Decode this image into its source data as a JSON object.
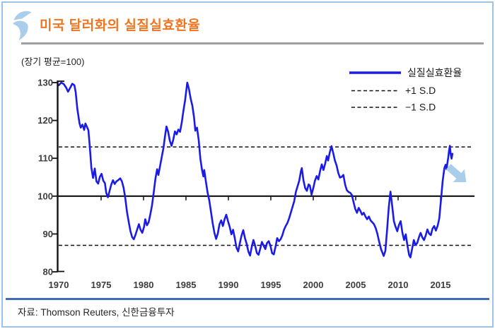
{
  "header": {
    "title": "미국 달러화의 실질실효환율",
    "logo": "shinhan-bird"
  },
  "footer": {
    "source": "자료: Thomson Reuters, 신한금융투자"
  },
  "colors": {
    "series_line": "#1b1be8",
    "title_orange": "#ee7623",
    "light_blue_accent": "#a9cdea",
    "page_border": "#9cc2e5",
    "footer_rule_blue": "#3e6fb5",
    "axis_black": "#111111"
  },
  "chart_data": {
    "type": "line",
    "title": "미국 달러화의 실질실효환율",
    "unit_note": "(장기 평균=100)",
    "xlabel": "",
    "ylabel": "",
    "xlim": [
      1970,
      2019
    ],
    "ylim": [
      80,
      130
    ],
    "x_ticks": [
      1970,
      1975,
      1980,
      1985,
      1990,
      1995,
      2000,
      2005,
      2010,
      2015
    ],
    "y_ticks": [
      80,
      90,
      100,
      110,
      120,
      130
    ],
    "grid": false,
    "legend_position": "top-right",
    "legend": [
      {
        "label": "실질실효환율",
        "style": "solid",
        "color": "#1b1be8"
      },
      {
        "label": "+1 S.D",
        "style": "dashed",
        "color": "#111111"
      },
      {
        "label": "−1 S.D",
        "style": "dashed",
        "color": "#111111"
      }
    ],
    "reference_lines": {
      "mean": 100,
      "sd_plus": 113,
      "sd_minus": 87
    },
    "annotation": {
      "type": "block-arrow",
      "direction": "down-right",
      "position_year": 2017,
      "position_value": 105,
      "color": "#a9cdea"
    },
    "series": [
      {
        "name": "실질실효환율",
        "points": [
          [
            1970.0,
            129.3
          ],
          [
            1970.3,
            130
          ],
          [
            1970.6,
            129.6
          ],
          [
            1970.9,
            128.6
          ],
          [
            1971.1,
            127.6
          ],
          [
            1971.35,
            128.6
          ],
          [
            1971.6,
            129.7
          ],
          [
            1971.85,
            129.3
          ],
          [
            1972.0,
            127.5
          ],
          [
            1972.2,
            123
          ],
          [
            1972.45,
            119.3
          ],
          [
            1972.6,
            118.1
          ],
          [
            1972.8,
            118.9
          ],
          [
            1973.0,
            117.5
          ],
          [
            1973.15,
            119.2
          ],
          [
            1973.35,
            118.2
          ],
          [
            1973.5,
            117.4
          ],
          [
            1973.65,
            113.5
          ],
          [
            1973.85,
            107.5
          ],
          [
            1974.05,
            104.8
          ],
          [
            1974.25,
            107.3
          ],
          [
            1974.45,
            103.9
          ],
          [
            1974.65,
            103.3
          ],
          [
            1974.85,
            105.1
          ],
          [
            1975.05,
            105.9
          ],
          [
            1975.25,
            104.1
          ],
          [
            1975.45,
            103.4
          ],
          [
            1975.6,
            100.9
          ],
          [
            1975.8,
            99.7
          ],
          [
            1976.0,
            101.4
          ],
          [
            1976.2,
            103.1
          ],
          [
            1976.4,
            104.2
          ],
          [
            1976.6,
            103.2
          ],
          [
            1976.8,
            103.9
          ],
          [
            1977.0,
            104.2
          ],
          [
            1977.25,
            104.7
          ],
          [
            1977.45,
            103.9
          ],
          [
            1977.65,
            102.2
          ],
          [
            1977.85,
            99.4
          ],
          [
            1978.05,
            95.8
          ],
          [
            1978.25,
            93.2
          ],
          [
            1978.45,
            90.8
          ],
          [
            1978.65,
            89.2
          ],
          [
            1978.85,
            88.6
          ],
          [
            1979.05,
            89.8
          ],
          [
            1979.25,
            91.2
          ],
          [
            1979.45,
            92.6
          ],
          [
            1979.65,
            91.1
          ],
          [
            1979.85,
            90.3
          ],
          [
            1980.05,
            91.8
          ],
          [
            1980.2,
            93.9
          ],
          [
            1980.4,
            92.3
          ],
          [
            1980.6,
            93.1
          ],
          [
            1980.8,
            95.2
          ],
          [
            1981.0,
            97.6
          ],
          [
            1981.2,
            101
          ],
          [
            1981.4,
            104.6
          ],
          [
            1981.6,
            107.1
          ],
          [
            1981.75,
            105.6
          ],
          [
            1981.95,
            108
          ],
          [
            1982.15,
            110.4
          ],
          [
            1982.35,
            112.8
          ],
          [
            1982.55,
            116.2
          ],
          [
            1982.7,
            118.4
          ],
          [
            1982.9,
            117
          ],
          [
            1983.1,
            114.6
          ],
          [
            1983.3,
            113.3
          ],
          [
            1983.5,
            114.9
          ],
          [
            1983.7,
            117.1
          ],
          [
            1983.9,
            116.3
          ],
          [
            1984.1,
            117.6
          ],
          [
            1984.3,
            117
          ],
          [
            1984.5,
            119.4
          ],
          [
            1984.7,
            122.6
          ],
          [
            1984.9,
            125.4
          ],
          [
            1985.15,
            130
          ],
          [
            1985.35,
            128.3
          ],
          [
            1985.55,
            125.8
          ],
          [
            1985.75,
            123.9
          ],
          [
            1985.95,
            120.8
          ],
          [
            1986.1,
            117.3
          ],
          [
            1986.3,
            118.1
          ],
          [
            1986.5,
            114.8
          ],
          [
            1986.7,
            109.8
          ],
          [
            1986.9,
            106.8
          ],
          [
            1987.05,
            105.2
          ],
          [
            1987.15,
            106.9
          ],
          [
            1987.35,
            103.8
          ],
          [
            1987.55,
            100.9
          ],
          [
            1987.75,
            98.8
          ],
          [
            1987.95,
            95.8
          ],
          [
            1988.15,
            92.8
          ],
          [
            1988.35,
            90.3
          ],
          [
            1988.55,
            88.7
          ],
          [
            1988.75,
            90.1
          ],
          [
            1988.95,
            92.6
          ],
          [
            1989.15,
            93.6
          ],
          [
            1989.35,
            92.1
          ],
          [
            1989.55,
            93.9
          ],
          [
            1989.75,
            95.1
          ],
          [
            1989.95,
            93.4
          ],
          [
            1990.15,
            91.9
          ],
          [
            1990.35,
            89.9
          ],
          [
            1990.55,
            91.1
          ],
          [
            1990.75,
            88.9
          ],
          [
            1990.95,
            86.4
          ],
          [
            1991.15,
            85.4
          ],
          [
            1991.35,
            87.6
          ],
          [
            1991.55,
            89.6
          ],
          [
            1991.75,
            91
          ],
          [
            1991.95,
            88.9
          ],
          [
            1992.15,
            87.4
          ],
          [
            1992.35,
            85.4
          ],
          [
            1992.55,
            84.3
          ],
          [
            1992.75,
            86.6
          ],
          [
            1992.95,
            88.4
          ],
          [
            1993.15,
            86.9
          ],
          [
            1993.35,
            85
          ],
          [
            1993.55,
            84.5
          ],
          [
            1993.75,
            86.1
          ],
          [
            1993.95,
            87.9
          ],
          [
            1994.15,
            86.9
          ],
          [
            1994.35,
            86
          ],
          [
            1994.55,
            87.6
          ],
          [
            1994.75,
            88.1
          ],
          [
            1994.95,
            86.9
          ],
          [
            1995.15,
            84.9
          ],
          [
            1995.35,
            84.6
          ],
          [
            1995.55,
            86.6
          ],
          [
            1995.75,
            88.9
          ],
          [
            1995.95,
            88.1
          ],
          [
            1996.15,
            88.6
          ],
          [
            1996.35,
            89.6
          ],
          [
            1996.55,
            91.1
          ],
          [
            1996.75,
            92.1
          ],
          [
            1996.95,
            92.9
          ],
          [
            1997.15,
            94.1
          ],
          [
            1997.35,
            95.6
          ],
          [
            1997.55,
            97.1
          ],
          [
            1997.75,
            98.6
          ],
          [
            1997.95,
            101.1
          ],
          [
            1998.15,
            102.6
          ],
          [
            1998.35,
            104.1
          ],
          [
            1998.55,
            106.6
          ],
          [
            1998.65,
            107.4
          ],
          [
            1998.85,
            104.1
          ],
          [
            1999.05,
            102.1
          ],
          [
            1999.25,
            101.4
          ],
          [
            1999.45,
            103.1
          ],
          [
            1999.6,
            102.8
          ],
          [
            1999.8,
            100.4
          ],
          [
            2000.0,
            102.1
          ],
          [
            2000.2,
            104.1
          ],
          [
            2000.4,
            105.3
          ],
          [
            2000.6,
            104.4
          ],
          [
            2000.8,
            106.6
          ],
          [
            2001.0,
            108.4
          ],
          [
            2001.2,
            106.9
          ],
          [
            2001.4,
            108.6
          ],
          [
            2001.6,
            110.6
          ],
          [
            2001.75,
            109.4
          ],
          [
            2001.95,
            111.6
          ],
          [
            2002.15,
            113.2
          ],
          [
            2002.35,
            111.4
          ],
          [
            2002.55,
            109.4
          ],
          [
            2002.75,
            108.1
          ],
          [
            2002.95,
            106.1
          ],
          [
            2003.15,
            104.9
          ],
          [
            2003.35,
            105.1
          ],
          [
            2003.55,
            105.6
          ],
          [
            2003.75,
            103.1
          ],
          [
            2003.95,
            101.6
          ],
          [
            2004.15,
            101.1
          ],
          [
            2004.35,
            100.9
          ],
          [
            2004.55,
            100.3
          ],
          [
            2004.75,
            98.4
          ],
          [
            2004.95,
            96.6
          ],
          [
            2005.15,
            95.6
          ],
          [
            2005.35,
            96.9
          ],
          [
            2005.55,
            96.1
          ],
          [
            2005.75,
            95.1
          ],
          [
            2005.95,
            95.6
          ],
          [
            2006.15,
            94.6
          ],
          [
            2006.35,
            93.9
          ],
          [
            2006.55,
            94.6
          ],
          [
            2006.75,
            93.6
          ],
          [
            2006.95,
            93.1
          ],
          [
            2007.15,
            92.6
          ],
          [
            2007.35,
            91.6
          ],
          [
            2007.55,
            90.1
          ],
          [
            2007.75,
            88.1
          ],
          [
            2008.0,
            85.9
          ],
          [
            2008.3,
            84.2
          ],
          [
            2008.5,
            85.6
          ],
          [
            2008.7,
            91.1
          ],
          [
            2008.9,
            97.1
          ],
          [
            2009.1,
            101.2
          ],
          [
            2009.3,
            97.4
          ],
          [
            2009.5,
            93.4
          ],
          [
            2009.7,
            91.9
          ],
          [
            2009.9,
            90.7
          ],
          [
            2010.1,
            92.4
          ],
          [
            2010.3,
            93.4
          ],
          [
            2010.5,
            90.4
          ],
          [
            2010.7,
            88.4
          ],
          [
            2010.9,
            89.9
          ],
          [
            2011.1,
            86.9
          ],
          [
            2011.3,
            84.4
          ],
          [
            2011.45,
            83.8
          ],
          [
            2011.65,
            86.1
          ],
          [
            2011.85,
            88.4
          ],
          [
            2012.05,
            87.1
          ],
          [
            2012.25,
            87.6
          ],
          [
            2012.45,
            89.1
          ],
          [
            2012.65,
            90.3
          ],
          [
            2012.85,
            89.1
          ],
          [
            2013.05,
            88.4
          ],
          [
            2013.25,
            89.6
          ],
          [
            2013.45,
            91.2
          ],
          [
            2013.65,
            90.1
          ],
          [
            2013.85,
            89.7
          ],
          [
            2014.05,
            91.4
          ],
          [
            2014.25,
            92.1
          ],
          [
            2014.45,
            90.9
          ],
          [
            2014.65,
            92.1
          ],
          [
            2014.85,
            94.1
          ],
          [
            2015.05,
            99
          ],
          [
            2015.25,
            104
          ],
          [
            2015.45,
            107.4
          ],
          [
            2015.6,
            108.3
          ],
          [
            2015.7,
            107.1
          ],
          [
            2015.9,
            110.1
          ],
          [
            2016.0,
            112
          ],
          [
            2016.1,
            113.3
          ],
          [
            2016.2,
            111
          ],
          [
            2016.3,
            109.9
          ],
          [
            2016.4,
            111.2
          ]
        ]
      }
    ]
  }
}
